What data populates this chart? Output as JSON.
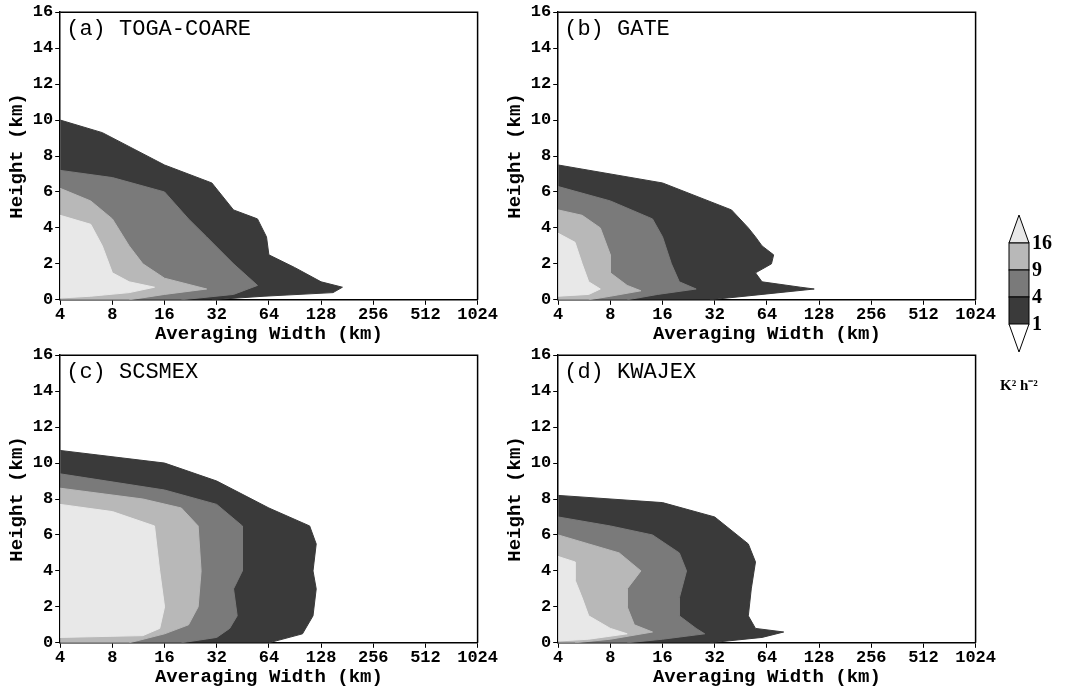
{
  "chart_data": [
    {
      "type": "area",
      "title": "(a) TOGA-COARE",
      "xlabel": "Averaging Width (km)",
      "ylabel": "Height (km)",
      "log": "x",
      "grid": false,
      "xlim": [
        4,
        1024
      ],
      "xticks": [
        4,
        8,
        16,
        32,
        64,
        128,
        256,
        512,
        1024
      ],
      "ylim": [
        0,
        16
      ],
      "yticks": [
        0,
        2,
        4,
        6,
        8,
        10,
        12,
        14,
        16
      ],
      "series": [
        {
          "color": "#3a3a3a",
          "x": [
            4,
            7,
            16,
            30,
            40,
            55,
            62,
            64,
            90,
            128,
            170,
            150,
            60,
            30
          ],
          "values": [
            10,
            9.3,
            7.5,
            6.5,
            5,
            4.5,
            3.5,
            2.5,
            1.8,
            1,
            0.7,
            0.4,
            0.2,
            0
          ]
        },
        {
          "color": "#7a7a7a",
          "x": [
            4,
            8,
            16,
            22,
            28,
            40,
            55,
            40,
            20
          ],
          "values": [
            7.2,
            6.8,
            6,
            4.5,
            3.5,
            2,
            0.8,
            0.3,
            0
          ]
        },
        {
          "color": "#b8b8b8",
          "x": [
            4,
            6,
            8,
            10,
            12,
            16,
            28,
            16,
            10
          ],
          "values": [
            6.2,
            5.5,
            4.5,
            3,
            2,
            1.2,
            0.6,
            0.3,
            0
          ]
        },
        {
          "color": "#e8e8e8",
          "x": [
            4,
            6,
            7,
            8,
            10,
            14,
            10,
            6,
            4
          ],
          "values": [
            4.7,
            4.2,
            3,
            1.5,
            1,
            0.7,
            0.4,
            0.2,
            0.1
          ]
        }
      ]
    },
    {
      "type": "area",
      "title": "(b) GATE",
      "xlabel": "Averaging Width (km)",
      "ylabel": "Height (km)",
      "log": "x",
      "grid": false,
      "legend": "right",
      "clabel": "K² h⁻²",
      "xlim": [
        4,
        1024
      ],
      "xticks": [
        4,
        8,
        16,
        32,
        64,
        128,
        256,
        512,
        1024
      ],
      "ylim": [
        0,
        16
      ],
      "yticks": [
        0,
        2,
        4,
        6,
        8,
        10,
        12,
        14,
        16
      ],
      "series": [
        {
          "name": "1",
          "color": "#3a3a3a",
          "x": [
            4,
            16,
            40,
            50,
            55,
            60,
            70,
            68,
            55,
            60,
            100,
            120,
            60,
            30
          ],
          "values": [
            7.5,
            6.5,
            5,
            4,
            3.5,
            3,
            2.5,
            2,
            1.5,
            1,
            0.7,
            0.6,
            0.3,
            0
          ]
        },
        {
          "name": "4",
          "color": "#7a7a7a",
          "x": [
            4,
            8,
            14,
            16,
            18,
            20,
            25,
            15,
            10
          ],
          "values": [
            6.3,
            5.5,
            4.5,
            3.5,
            2,
            1,
            0.6,
            0.3,
            0
          ]
        },
        {
          "name": "9",
          "color": "#b8b8b8",
          "x": [
            4,
            5.5,
            7,
            8,
            8,
            10,
            12,
            8,
            6
          ],
          "values": [
            5,
            4.7,
            4,
            2.5,
            1.5,
            0.8,
            0.5,
            0.2,
            0
          ]
        },
        {
          "name": "16",
          "color": "#e8e8e8",
          "x": [
            4,
            5,
            5.5,
            6,
            7,
            6,
            4
          ],
          "values": [
            3.7,
            3.2,
            2,
            1,
            0.6,
            0.3,
            0.2
          ]
        }
      ]
    },
    {
      "type": "area",
      "title": "(c) SCSMEX",
      "xlabel": "Averaging Width (km)",
      "ylabel": "Height (km)",
      "log": "x",
      "grid": false,
      "xlim": [
        4,
        1024
      ],
      "xticks": [
        4,
        8,
        16,
        32,
        64,
        128,
        256,
        512,
        1024
      ],
      "ylim": [
        0,
        16
      ],
      "yticks": [
        0,
        2,
        4,
        6,
        8,
        10,
        12,
        14,
        16
      ],
      "series": [
        {
          "color": "#3a3a3a",
          "x": [
            4,
            16,
            32,
            64,
            110,
            120,
            115,
            120,
            115,
            100,
            64
          ],
          "values": [
            10.7,
            10,
            9,
            7.5,
            6.5,
            5.5,
            4,
            3,
            1.5,
            0.5,
            0
          ]
        },
        {
          "color": "#7a7a7a",
          "x": [
            4,
            16,
            32,
            45,
            45,
            40,
            42,
            38,
            32,
            20
          ],
          "values": [
            9.4,
            8.5,
            7.7,
            6.5,
            4,
            3,
            1.5,
            0.8,
            0.3,
            0
          ]
        },
        {
          "color": "#b8b8b8",
          "x": [
            4,
            12,
            20,
            25,
            26,
            25,
            22,
            16,
            10
          ],
          "values": [
            8.6,
            8,
            7.5,
            6.5,
            4,
            2,
            1,
            0.5,
            0
          ]
        },
        {
          "color": "#e8e8e8",
          "x": [
            4,
            8,
            14,
            15,
            16,
            15,
            12,
            4
          ],
          "values": [
            7.7,
            7.3,
            6.5,
            4,
            2,
            0.8,
            0.4,
            0.3
          ]
        }
      ]
    },
    {
      "type": "area",
      "title": "(d) KWAJEX",
      "xlabel": "Averaging Width (km)",
      "ylabel": "Height (km)",
      "log": "x",
      "grid": false,
      "xlim": [
        4,
        1024
      ],
      "xticks": [
        4,
        8,
        16,
        32,
        64,
        128,
        256,
        512,
        1024
      ],
      "ylim": [
        0,
        16
      ],
      "yticks": [
        0,
        2,
        4,
        6,
        8,
        10,
        12,
        14,
        16
      ],
      "series": [
        {
          "color": "#3a3a3a",
          "x": [
            4,
            16,
            32,
            50,
            55,
            52,
            50,
            55,
            80,
            60,
            30
          ],
          "values": [
            8.2,
            7.8,
            7,
            5.5,
            4.5,
            3,
            1.5,
            0.8,
            0.6,
            0.3,
            0
          ]
        },
        {
          "color": "#7a7a7a",
          "x": [
            4,
            8,
            14,
            20,
            22,
            20,
            20,
            25,
            28,
            16,
            10
          ],
          "values": [
            7,
            6.5,
            6,
            5,
            4,
            2.5,
            1.5,
            0.8,
            0.5,
            0.2,
            0
          ]
        },
        {
          "color": "#b8b8b8",
          "x": [
            4,
            6,
            9,
            12,
            10,
            10,
            11,
            14,
            8,
            5
          ],
          "values": [
            6,
            5.5,
            5,
            4,
            3,
            2,
            1,
            0.6,
            0.2,
            0
          ]
        },
        {
          "color": "#e8e8e8",
          "x": [
            4,
            5,
            5,
            5.5,
            6,
            8,
            10,
            6,
            4
          ],
          "values": [
            4.8,
            4.5,
            3.5,
            2.5,
            1.5,
            0.8,
            0.5,
            0.2,
            0.1
          ]
        }
      ]
    }
  ]
}
